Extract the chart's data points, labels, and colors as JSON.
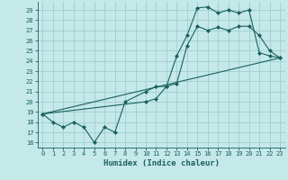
{
  "xlabel": "Humidex (Indice chaleur)",
  "xlim": [
    -0.5,
    23.5
  ],
  "ylim": [
    15.5,
    29.8
  ],
  "yticks": [
    16,
    17,
    18,
    19,
    20,
    21,
    22,
    23,
    24,
    25,
    26,
    27,
    28,
    29
  ],
  "xticks": [
    0,
    1,
    2,
    3,
    4,
    5,
    6,
    7,
    8,
    9,
    10,
    11,
    12,
    13,
    14,
    15,
    16,
    17,
    18,
    19,
    20,
    21,
    22,
    23
  ],
  "background_color": "#c5e8e8",
  "grid_color": "#9fcece",
  "line_color": "#1a6060",
  "line1_x": [
    0,
    1,
    2,
    3,
    4,
    5,
    6,
    7,
    8,
    10,
    11,
    12,
    13,
    14,
    15,
    16,
    17,
    18,
    19,
    20,
    21,
    22,
    23
  ],
  "line1_y": [
    18.8,
    18,
    17.5,
    18,
    17.5,
    16,
    17.5,
    17,
    20,
    21,
    21.5,
    21.5,
    24.5,
    26.5,
    29.2,
    29.3,
    28.7,
    29.0,
    28.7,
    29.0,
    24.8,
    24.5,
    24.3
  ],
  "line2_x": [
    0,
    23
  ],
  "line2_y": [
    18.8,
    24.3
  ],
  "line3_x": [
    0,
    10,
    11,
    12,
    13,
    14,
    15,
    16,
    17,
    18,
    19,
    20,
    21,
    22,
    23
  ],
  "line3_y": [
    18.8,
    20.0,
    20.3,
    21.5,
    21.8,
    25.5,
    27.4,
    27.0,
    27.3,
    27.0,
    27.4,
    27.4,
    26.5,
    25.0,
    24.3
  ]
}
